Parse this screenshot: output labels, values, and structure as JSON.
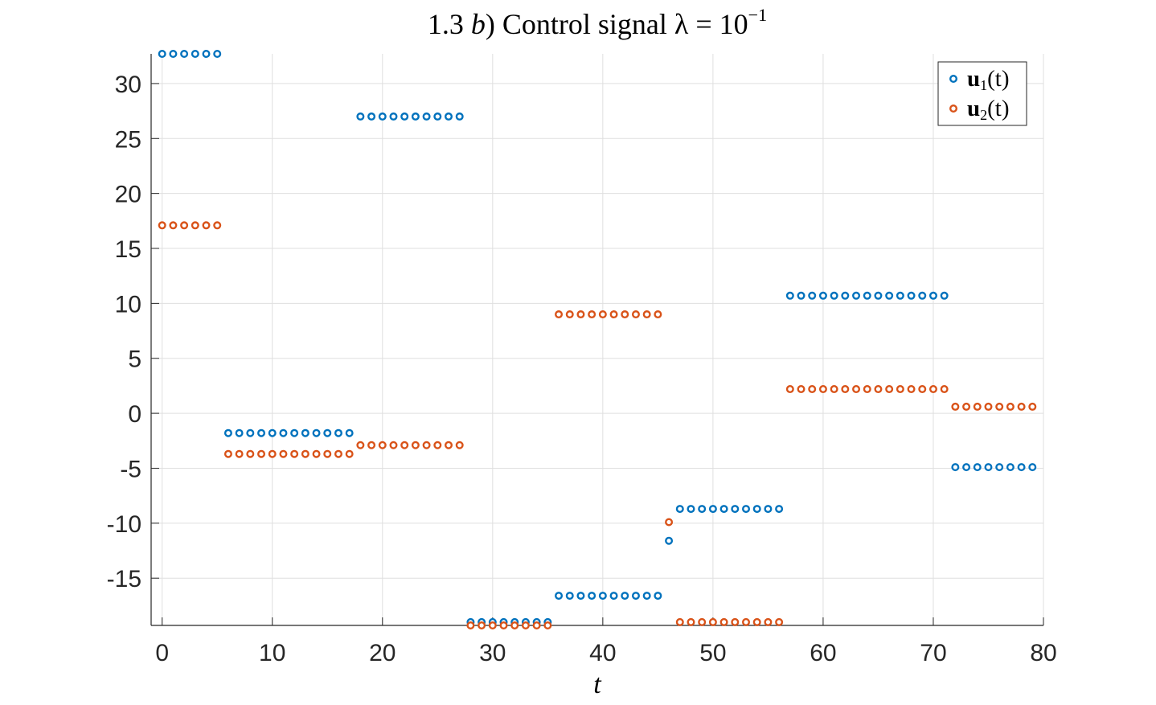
{
  "chart_data": {
    "type": "scatter",
    "title": {
      "main": "1.3 ",
      "italic": "b",
      "rest": ") Control signal λ = 10",
      "sup": "−1"
    },
    "xlabel": "t",
    "ylabel": "",
    "xlim": [
      -1,
      80
    ],
    "ylim": [
      -19.3,
      32.7
    ],
    "xticks": [
      0,
      10,
      20,
      30,
      40,
      50,
      60,
      70,
      80
    ],
    "xtick_labels": [
      "0",
      "10",
      "20",
      "30",
      "40",
      "50",
      "60",
      "70",
      "80"
    ],
    "yticks": [
      30,
      25,
      20,
      15,
      10,
      5,
      0,
      -5,
      -10,
      -15
    ],
    "ytick_labels": [
      "30",
      "25",
      "20",
      "15",
      "10",
      "5",
      "0",
      "-5",
      "-10",
      "-15"
    ],
    "grid": true,
    "legend_position": "top-right",
    "marker": "circle-open",
    "series": [
      {
        "name": "u1(t)",
        "legend_label": {
          "bold": "u",
          "sub": "1",
          "rest": "(t)"
        },
        "color": "#0072BD",
        "segments": [
          {
            "t": [
              0,
              5
            ],
            "value": 32.7
          },
          {
            "t": [
              6,
              17
            ],
            "value": -1.8
          },
          {
            "t": [
              18,
              27
            ],
            "value": 27.0
          },
          {
            "t": [
              28,
              35
            ],
            "value": -19.0
          },
          {
            "t": [
              36,
              45
            ],
            "value": -16.6
          },
          {
            "t": [
              46,
              46
            ],
            "value": -11.6
          },
          {
            "t": [
              47,
              56
            ],
            "value": -8.7
          },
          {
            "t": [
              57,
              71
            ],
            "value": 10.7
          },
          {
            "t": [
              72,
              79
            ],
            "value": -4.9
          }
        ]
      },
      {
        "name": "u2(t)",
        "legend_label": {
          "bold": "u",
          "sub": "2",
          "rest": "(t)"
        },
        "color": "#D95319",
        "segments": [
          {
            "t": [
              0,
              5
            ],
            "value": 17.1
          },
          {
            "t": [
              6,
              17
            ],
            "value": -3.7
          },
          {
            "t": [
              18,
              27
            ],
            "value": -2.9
          },
          {
            "t": [
              28,
              35
            ],
            "value": -19.3
          },
          {
            "t": [
              36,
              45
            ],
            "value": 9.0
          },
          {
            "t": [
              46,
              46
            ],
            "value": -9.9
          },
          {
            "t": [
              47,
              56
            ],
            "value": -19.0
          },
          {
            "t": [
              57,
              71
            ],
            "value": 2.2
          },
          {
            "t": [
              72,
              79
            ],
            "value": 0.6
          }
        ]
      }
    ]
  }
}
